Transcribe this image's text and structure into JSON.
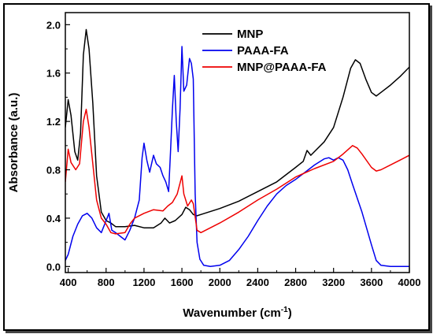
{
  "chart_data": {
    "type": "line",
    "xlabel": "Wavenumber (cm",
    "xlabel_sup": "-1",
    "xlabel_close": ")",
    "ylabel": "Absorbance (a.u.)",
    "xlim": [
      370,
      4000
    ],
    "ylim": [
      -0.05,
      2.1
    ],
    "x_ticks": [
      400,
      800,
      1200,
      1600,
      2000,
      2400,
      2800,
      3200,
      3600,
      4000
    ],
    "y_ticks": [
      "0.0",
      "0.4",
      "0.8",
      "1.2",
      "1.6",
      "2.0"
    ],
    "y_tick_values": [
      0,
      0.4,
      0.8,
      1.2,
      1.6,
      2.0
    ],
    "legend_position": "top-center",
    "series": [
      {
        "name": "MNP",
        "color": "#000000",
        "points": [
          [
            370,
            1.15
          ],
          [
            400,
            1.38
          ],
          [
            430,
            1.25
          ],
          [
            470,
            0.95
          ],
          [
            500,
            0.88
          ],
          [
            530,
            1.1
          ],
          [
            560,
            1.75
          ],
          [
            590,
            1.96
          ],
          [
            620,
            1.8
          ],
          [
            660,
            1.35
          ],
          [
            700,
            0.75
          ],
          [
            750,
            0.45
          ],
          [
            800,
            0.38
          ],
          [
            850,
            0.36
          ],
          [
            900,
            0.33
          ],
          [
            1000,
            0.33
          ],
          [
            1100,
            0.34
          ],
          [
            1200,
            0.32
          ],
          [
            1300,
            0.32
          ],
          [
            1380,
            0.36
          ],
          [
            1420,
            0.4
          ],
          [
            1470,
            0.36
          ],
          [
            1530,
            0.38
          ],
          [
            1600,
            0.43
          ],
          [
            1640,
            0.49
          ],
          [
            1680,
            0.47
          ],
          [
            1720,
            0.43
          ],
          [
            1760,
            0.42
          ],
          [
            1800,
            0.43
          ],
          [
            2000,
            0.48
          ],
          [
            2200,
            0.54
          ],
          [
            2400,
            0.62
          ],
          [
            2600,
            0.7
          ],
          [
            2800,
            0.82
          ],
          [
            2880,
            0.87
          ],
          [
            2920,
            0.96
          ],
          [
            2960,
            0.92
          ],
          [
            3100,
            1.03
          ],
          [
            3200,
            1.15
          ],
          [
            3300,
            1.4
          ],
          [
            3380,
            1.64
          ],
          [
            3430,
            1.71
          ],
          [
            3480,
            1.68
          ],
          [
            3540,
            1.55
          ],
          [
            3600,
            1.44
          ],
          [
            3650,
            1.41
          ],
          [
            3700,
            1.44
          ],
          [
            3800,
            1.5
          ],
          [
            3900,
            1.57
          ],
          [
            4000,
            1.65
          ]
        ]
      },
      {
        "name": "PAAA-FA",
        "color": "#0000ee",
        "points": [
          [
            370,
            0.05
          ],
          [
            400,
            0.1
          ],
          [
            450,
            0.25
          ],
          [
            500,
            0.35
          ],
          [
            550,
            0.42
          ],
          [
            600,
            0.44
          ],
          [
            650,
            0.4
          ],
          [
            700,
            0.32
          ],
          [
            750,
            0.28
          ],
          [
            800,
            0.38
          ],
          [
            830,
            0.44
          ],
          [
            860,
            0.3
          ],
          [
            900,
            0.28
          ],
          [
            950,
            0.25
          ],
          [
            1000,
            0.22
          ],
          [
            1050,
            0.3
          ],
          [
            1100,
            0.4
          ],
          [
            1150,
            0.55
          ],
          [
            1180,
            0.9
          ],
          [
            1200,
            1.02
          ],
          [
            1230,
            0.88
          ],
          [
            1260,
            0.78
          ],
          [
            1300,
            0.92
          ],
          [
            1330,
            0.85
          ],
          [
            1370,
            0.82
          ],
          [
            1400,
            0.75
          ],
          [
            1430,
            0.7
          ],
          [
            1460,
            0.62
          ],
          [
            1480,
            0.95
          ],
          [
            1500,
            1.3
          ],
          [
            1520,
            1.58
          ],
          [
            1540,
            1.2
          ],
          [
            1560,
            0.95
          ],
          [
            1580,
            1.3
          ],
          [
            1600,
            1.82
          ],
          [
            1620,
            1.45
          ],
          [
            1650,
            1.5
          ],
          [
            1680,
            1.72
          ],
          [
            1700,
            1.68
          ],
          [
            1720,
            1.55
          ],
          [
            1740,
            0.6
          ],
          [
            1760,
            0.2
          ],
          [
            1790,
            0.06
          ],
          [
            1830,
            0.01
          ],
          [
            1900,
            0.0
          ],
          [
            2000,
            0.01
          ],
          [
            2100,
            0.05
          ],
          [
            2200,
            0.14
          ],
          [
            2300,
            0.25
          ],
          [
            2400,
            0.38
          ],
          [
            2500,
            0.5
          ],
          [
            2600,
            0.6
          ],
          [
            2700,
            0.67
          ],
          [
            2800,
            0.72
          ],
          [
            2900,
            0.78
          ],
          [
            3000,
            0.84
          ],
          [
            3100,
            0.89
          ],
          [
            3150,
            0.9
          ],
          [
            3200,
            0.88
          ],
          [
            3250,
            0.9
          ],
          [
            3300,
            0.88
          ],
          [
            3350,
            0.8
          ],
          [
            3400,
            0.68
          ],
          [
            3500,
            0.45
          ],
          [
            3600,
            0.18
          ],
          [
            3650,
            0.05
          ],
          [
            3700,
            0.01
          ],
          [
            3800,
            0.0
          ],
          [
            4000,
            0.0
          ]
        ]
      },
      {
        "name": "MNP@PAAA-FA",
        "color": "#ee0000",
        "points": [
          [
            370,
            0.7
          ],
          [
            400,
            0.97
          ],
          [
            430,
            0.86
          ],
          [
            480,
            0.8
          ],
          [
            520,
            0.85
          ],
          [
            560,
            1.2
          ],
          [
            590,
            1.3
          ],
          [
            620,
            1.15
          ],
          [
            660,
            0.85
          ],
          [
            700,
            0.55
          ],
          [
            750,
            0.4
          ],
          [
            800,
            0.35
          ],
          [
            850,
            0.28
          ],
          [
            900,
            0.27
          ],
          [
            1000,
            0.28
          ],
          [
            1050,
            0.35
          ],
          [
            1100,
            0.4
          ],
          [
            1200,
            0.44
          ],
          [
            1300,
            0.47
          ],
          [
            1400,
            0.46
          ],
          [
            1450,
            0.5
          ],
          [
            1500,
            0.53
          ],
          [
            1550,
            0.6
          ],
          [
            1600,
            0.75
          ],
          [
            1620,
            0.6
          ],
          [
            1660,
            0.5
          ],
          [
            1700,
            0.55
          ],
          [
            1720,
            0.52
          ],
          [
            1760,
            0.3
          ],
          [
            1800,
            0.28
          ],
          [
            2000,
            0.36
          ],
          [
            2200,
            0.45
          ],
          [
            2400,
            0.55
          ],
          [
            2600,
            0.64
          ],
          [
            2800,
            0.74
          ],
          [
            3000,
            0.81
          ],
          [
            3200,
            0.87
          ],
          [
            3300,
            0.93
          ],
          [
            3400,
            1.0
          ],
          [
            3450,
            0.98
          ],
          [
            3500,
            0.93
          ],
          [
            3600,
            0.82
          ],
          [
            3650,
            0.79
          ],
          [
            3700,
            0.8
          ],
          [
            3800,
            0.84
          ],
          [
            3900,
            0.88
          ],
          [
            4000,
            0.92
          ]
        ]
      }
    ]
  }
}
